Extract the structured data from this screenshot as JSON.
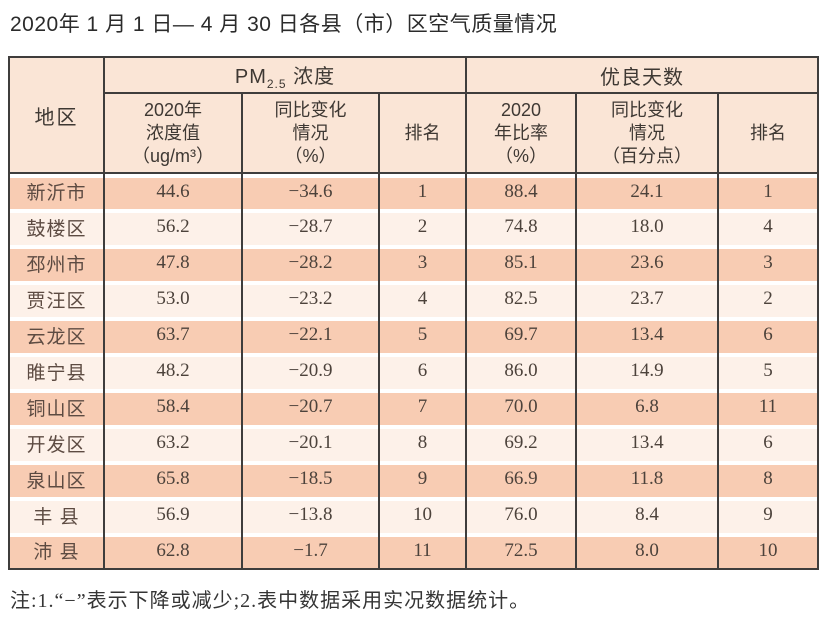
{
  "page": {
    "title": "2020年 1 月 1 日— 4 月 30 日各县（市）区空气质量情况",
    "note": "注:1.“−”表示下降或减少;2.表中数据采用实况数据统计。"
  },
  "colors": {
    "border": "#3f3d3c",
    "header_bg": "#fae5d6",
    "row_odd": "#f8ccb3",
    "row_even": "#fdf1e9",
    "title_color": "#2b2b2b",
    "text_dark": "#4c423b",
    "region_color": "#5d4b42"
  },
  "table": {
    "region_header": "地区",
    "group_pm": {
      "prefix": "PM",
      "sub": "2.5",
      "suffix": " 浓度"
    },
    "group_good_days": "优良天数",
    "subheaders": {
      "pm_value": "2020年\n浓度值\n（ug/m³）",
      "pm_change": "同比变化\n情况\n（%）",
      "pm_rank": "排名",
      "good_ratio": "2020\n年比率\n（%）",
      "good_change": "同比变化\n情况\n（百分点）",
      "good_rank": "排名"
    },
    "rows": [
      [
        "新沂市",
        "44.6",
        "−34.6",
        "1",
        "88.4",
        "24.1",
        "1"
      ],
      [
        "鼓楼区",
        "56.2",
        "−28.7",
        "2",
        "74.8",
        "18.0",
        "4"
      ],
      [
        "邳州市",
        "47.8",
        "−28.2",
        "3",
        "85.1",
        "23.6",
        "3"
      ],
      [
        "贾汪区",
        "53.0",
        "−23.2",
        "4",
        "82.5",
        "23.7",
        "2"
      ],
      [
        "云龙区",
        "63.7",
        "−22.1",
        "5",
        "69.7",
        "13.4",
        "6"
      ],
      [
        "睢宁县",
        "48.2",
        "−20.9",
        "6",
        "86.0",
        "14.9",
        "5"
      ],
      [
        "铜山区",
        "58.4",
        "−20.7",
        "7",
        "70.0",
        "6.8",
        "11"
      ],
      [
        "开发区",
        "63.2",
        "−20.1",
        "8",
        "69.2",
        "13.4",
        "6"
      ],
      [
        "泉山区",
        "65.8",
        "−18.5",
        "9",
        "66.9",
        "11.8",
        "8"
      ],
      [
        "丰 县",
        "56.9",
        "−13.8",
        "10",
        "76.0",
        "8.4",
        "9"
      ],
      [
        "沛 县",
        "62.8",
        "−1.7",
        "11",
        "72.5",
        "8.0",
        "10"
      ]
    ]
  }
}
